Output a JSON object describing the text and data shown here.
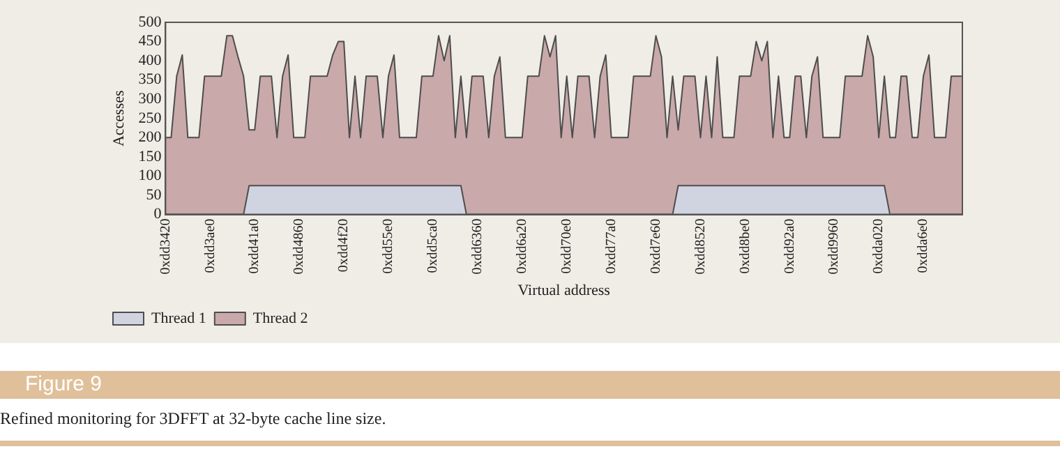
{
  "chart_data": {
    "type": "area",
    "title": "Figure 9",
    "xlabel": "Virtual address",
    "ylabel": "Accesses",
    "annotations": [
      "Refined monitoring for 3DFFT at 32-byte cache line size."
    ],
    "legend": "bottom left",
    "categories": [
      "0xdd3420",
      null,
      null,
      null,
      null,
      null,
      null,
      null,
      "0xdd3ae0",
      null,
      null,
      null,
      null,
      null,
      null,
      null,
      "0xdd41a0",
      null,
      null,
      null,
      null,
      null,
      null,
      null,
      "0xdd4860",
      null,
      null,
      null,
      null,
      null,
      null,
      null,
      "0xdd4f20",
      null,
      null,
      null,
      null,
      null,
      null,
      null,
      "0xdd55e0",
      null,
      null,
      null,
      null,
      null,
      null,
      null,
      "0xdd5ca0",
      null,
      null,
      null,
      null,
      null,
      null,
      null,
      "0xdd6360",
      null,
      null,
      null,
      null,
      null,
      null,
      null,
      "0xdd6a20",
      null,
      null,
      null,
      null,
      null,
      null,
      null,
      "0xdd70e0",
      null,
      null,
      null,
      null,
      null,
      null,
      null,
      "0xdd77a0",
      null,
      null,
      null,
      null,
      null,
      null,
      null,
      "0xdd7e60",
      null,
      null,
      null,
      null,
      null,
      null,
      null,
      "0xdd8520",
      null,
      null,
      null,
      null,
      null,
      null,
      null,
      "0xdd8be0",
      null,
      null,
      null,
      null,
      null,
      null,
      null,
      "0xdd92a0",
      null,
      null,
      null,
      null,
      null,
      null,
      null,
      "0xdd9960",
      null,
      null,
      null,
      null,
      null,
      null,
      null,
      "0xdda020",
      null,
      null,
      null,
      null,
      null,
      null,
      null,
      "0xdda6e0",
      null,
      null,
      null,
      null,
      null,
      null,
      null
    ],
    "ylim": [
      0,
      500
    ],
    "yticks": [
      0,
      50,
      100,
      150,
      200,
      250,
      300,
      350,
      400,
      450,
      500
    ],
    "series": [
      {
        "name": "Thread 1",
        "color": "#d0d3e0",
        "values": [
          0,
          0,
          0,
          0,
          0,
          0,
          0,
          0,
          0,
          0,
          0,
          0,
          0,
          0,
          0,
          75,
          75,
          75,
          75,
          75,
          75,
          75,
          75,
          75,
          75,
          75,
          75,
          75,
          75,
          75,
          75,
          75,
          75,
          75,
          75,
          75,
          75,
          75,
          75,
          75,
          75,
          75,
          75,
          75,
          75,
          75,
          75,
          75,
          75,
          75,
          75,
          75,
          75,
          75,
          0,
          0,
          0,
          0,
          0,
          0,
          0,
          0,
          0,
          0,
          0,
          0,
          0,
          0,
          0,
          0,
          0,
          0,
          0,
          0,
          0,
          0,
          0,
          0,
          0,
          0,
          0,
          0,
          0,
          0,
          0,
          0,
          0,
          0,
          0,
          0,
          0,
          0,
          75,
          75,
          75,
          75,
          75,
          75,
          75,
          75,
          75,
          75,
          75,
          75,
          75,
          75,
          75,
          75,
          75,
          75,
          75,
          75,
          75,
          75,
          75,
          75,
          75,
          75,
          75,
          75,
          75,
          75,
          75,
          75,
          75,
          75,
          75,
          75,
          75,
          75,
          0,
          0,
          0,
          0,
          0,
          0,
          0,
          0,
          0,
          0,
          0,
          0,
          0,
          0
        ]
      },
      {
        "name": "Thread 2",
        "color": "#c9a9aa",
        "values": [
          200,
          200,
          360,
          415,
          200,
          200,
          200,
          360,
          360,
          360,
          360,
          465,
          465,
          410,
          360,
          220,
          220,
          360,
          360,
          360,
          200,
          360,
          415,
          200,
          200,
          200,
          360,
          360,
          360,
          360,
          415,
          450,
          450,
          200,
          360,
          200,
          360,
          360,
          360,
          200,
          360,
          415,
          200,
          200,
          200,
          200,
          360,
          360,
          360,
          465,
          400,
          465,
          200,
          360,
          200,
          360,
          360,
          360,
          200,
          360,
          410,
          200,
          200,
          200,
          200,
          360,
          360,
          360,
          465,
          410,
          465,
          200,
          360,
          200,
          360,
          360,
          360,
          200,
          360,
          415,
          200,
          200,
          200,
          200,
          360,
          360,
          360,
          360,
          465,
          410,
          200,
          360,
          220,
          360,
          360,
          360,
          200,
          360,
          200,
          410,
          200,
          200,
          200,
          360,
          360,
          360,
          450,
          400,
          450,
          200,
          360,
          200,
          200,
          360,
          360,
          200,
          360,
          410,
          200,
          200,
          200,
          200,
          360,
          360,
          360,
          360,
          465,
          410,
          200,
          360,
          200,
          200,
          360,
          360,
          200,
          200,
          360,
          415,
          200,
          200,
          200,
          360,
          360,
          360
        ]
      }
    ]
  }
}
